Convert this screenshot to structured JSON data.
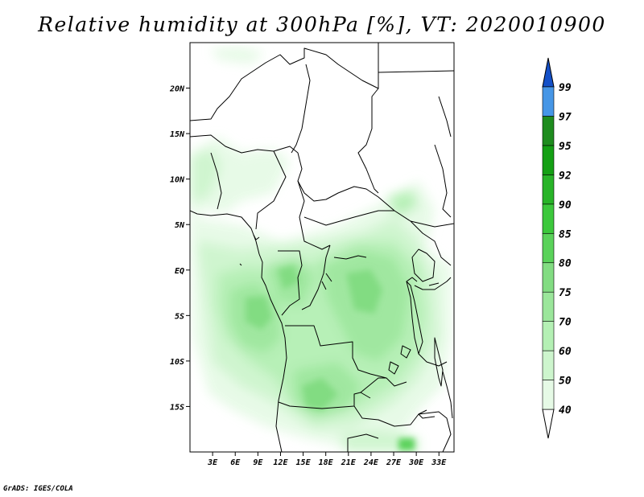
{
  "title": "Relative humidity at 300hPa [%], VT: 2020010900",
  "credit": "GrADS: IGES/COLA",
  "map": {
    "lon_range_deg": [
      0,
      35
    ],
    "lat_range_deg": [
      -20,
      25
    ],
    "lat_ticks": [
      {
        "value": 20,
        "label": "20N"
      },
      {
        "value": 15,
        "label": "15N"
      },
      {
        "value": 10,
        "label": "10N"
      },
      {
        "value": 5,
        "label": "5N"
      },
      {
        "value": 0,
        "label": "EQ"
      },
      {
        "value": -5,
        "label": "5S"
      },
      {
        "value": -10,
        "label": "10S"
      },
      {
        "value": -15,
        "label": "15S"
      }
    ],
    "lon_ticks": [
      {
        "value": 3,
        "label": "3E"
      },
      {
        "value": 6,
        "label": "6E"
      },
      {
        "value": 9,
        "label": "9E"
      },
      {
        "value": 12,
        "label": "12E"
      },
      {
        "value": 15,
        "label": "15E"
      },
      {
        "value": 18,
        "label": "18E"
      },
      {
        "value": 21,
        "label": "21E"
      },
      {
        "value": 24,
        "label": "24E"
      },
      {
        "value": 27,
        "label": "27E"
      },
      {
        "value": 30,
        "label": "30E"
      },
      {
        "value": 33,
        "label": "33E"
      }
    ]
  },
  "colorbar": {
    "levels": [
      {
        "value": 40,
        "label": "40",
        "color": "#e6fae6"
      },
      {
        "value": 50,
        "label": "50",
        "color": "#cdf5cd"
      },
      {
        "value": 60,
        "label": "60",
        "color": "#b4f0b4"
      },
      {
        "value": 70,
        "label": "70",
        "color": "#9be69b"
      },
      {
        "value": 75,
        "label": "75",
        "color": "#82dc82"
      },
      {
        "value": 80,
        "label": "80",
        "color": "#5ad25a"
      },
      {
        "value": 85,
        "label": "85",
        "color": "#3cc83c"
      },
      {
        "value": 90,
        "label": "90",
        "color": "#28b428"
      },
      {
        "value": 92,
        "label": "92",
        "color": "#14a014"
      },
      {
        "value": 95,
        "label": "95",
        "color": "#1e8c1e"
      },
      {
        "value": 97,
        "label": "97",
        "color": "#4696e6"
      },
      {
        "value": 99,
        "label": "99",
        "color": "#1e6ed2"
      }
    ],
    "top_color": "#1450c8",
    "bottom_color": "#ffffff"
  }
}
